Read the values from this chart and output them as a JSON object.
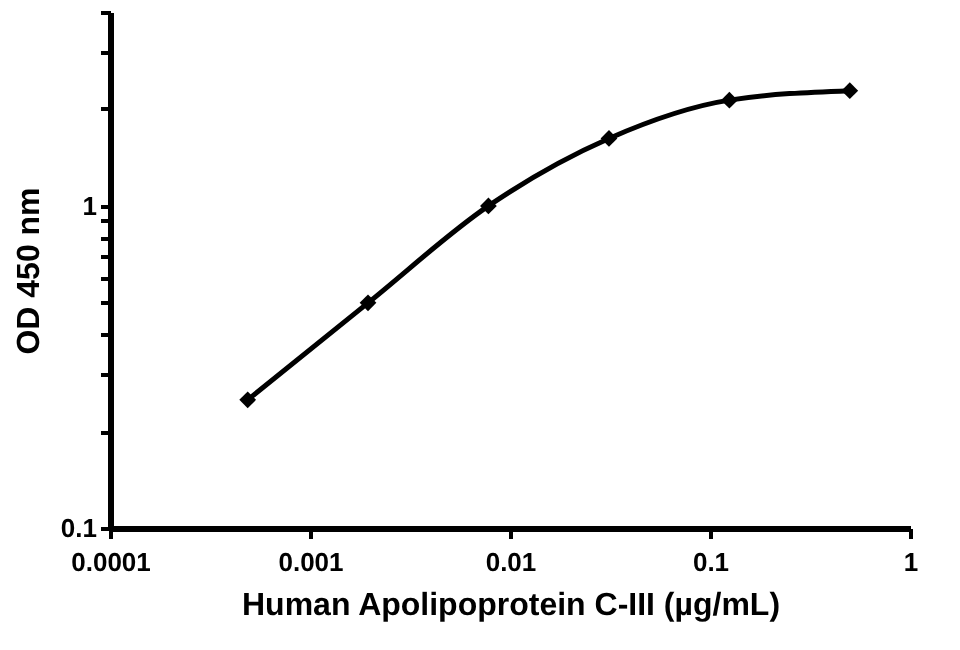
{
  "chart_data": {
    "type": "line",
    "xlabel": "Human Apolipoprotein C-III (µg/mL)",
    "ylabel": "OD 450 nm",
    "x": [
      0.000488,
      0.00195,
      0.0078,
      0.03125,
      0.125,
      0.5
    ],
    "series": [
      {
        "color": "#000000",
        "values": [
          0.25,
          0.5,
          1.0,
          1.62,
          2.13,
          2.28
        ]
      }
    ],
    "log": "xy",
    "xlim": [
      0.0001,
      1
    ],
    "ylim": [
      0.1,
      4
    ],
    "xticks": [
      0.0001,
      0.001,
      0.01,
      0.1,
      1
    ],
    "yticks": [
      0.1,
      {
        "value": 0.2,
        "label": null
      },
      {
        "value": 0.3,
        "label": null
      },
      {
        "value": 0.4,
        "label": null
      },
      {
        "value": 0.5,
        "label": null
      },
      {
        "value": 0.6,
        "label": null
      },
      {
        "value": 0.7,
        "label": null
      },
      {
        "value": 0.8,
        "label": null
      },
      {
        "value": 0.9,
        "label": null
      },
      1,
      {
        "value": 2,
        "label": null
      },
      {
        "value": 3,
        "label": null
      },
      {
        "value": 4,
        "label": null
      }
    ],
    "grid": false,
    "marker": "diamond",
    "line_style": "solid"
  }
}
